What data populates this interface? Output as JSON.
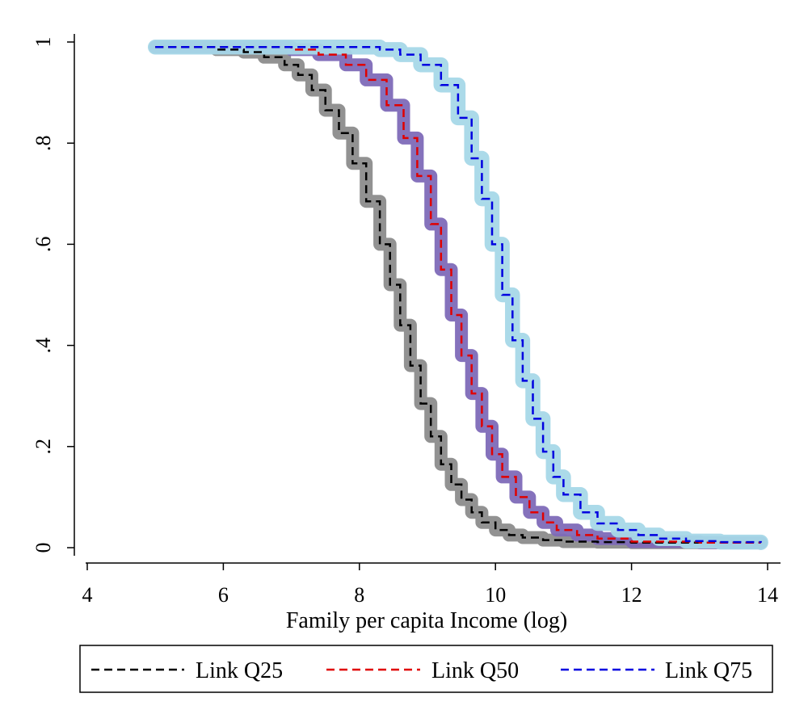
{
  "chart_data": {
    "type": "line",
    "title": "",
    "xlabel": "Family per capita Income (log)",
    "ylabel": "",
    "xlim": [
      4,
      14
    ],
    "ylim": [
      0,
      1
    ],
    "xticks": [
      4,
      6,
      8,
      10,
      12,
      14
    ],
    "xtick_labels": [
      "4",
      "6",
      "8",
      "10",
      "12",
      "14"
    ],
    "yticks": [
      0,
      0.2,
      0.4,
      0.6,
      0.8,
      1
    ],
    "ytick_labels": [
      "0",
      ".2",
      ".4",
      ".6",
      ".8",
      "1"
    ],
    "grid": false,
    "legend_position": "bottom",
    "series": [
      {
        "name": "Link Q25",
        "line_color": "#000000",
        "band_color": "#8c8c8c",
        "band_halfwidth": 0.008,
        "x": [
          5.0,
          5.5,
          5.9,
          6.3,
          6.6,
          6.9,
          7.1,
          7.3,
          7.5,
          7.7,
          7.9,
          8.1,
          8.3,
          8.45,
          8.6,
          8.75,
          8.9,
          9.05,
          9.2,
          9.35,
          9.5,
          9.65,
          9.8,
          10.0,
          10.2,
          10.4,
          10.7,
          11.0,
          11.5,
          12.0,
          13.0,
          13.9
        ],
        "values": [
          0.99,
          0.99,
          0.985,
          0.98,
          0.97,
          0.955,
          0.935,
          0.905,
          0.865,
          0.82,
          0.76,
          0.685,
          0.6,
          0.52,
          0.44,
          0.36,
          0.285,
          0.22,
          0.165,
          0.125,
          0.095,
          0.07,
          0.05,
          0.035,
          0.025,
          0.02,
          0.015,
          0.012,
          0.011,
          0.01,
          0.01,
          0.01
        ]
      },
      {
        "name": "Link Q50",
        "line_color": "#e00000",
        "band_color": "#7e6ab8",
        "band_halfwidth": 0.008,
        "x": [
          5.0,
          6.5,
          7.0,
          7.4,
          7.8,
          8.1,
          8.4,
          8.65,
          8.85,
          9.05,
          9.2,
          9.35,
          9.5,
          9.65,
          9.8,
          9.95,
          10.1,
          10.3,
          10.5,
          10.7,
          10.9,
          11.2,
          11.5,
          12.0,
          13.0,
          13.9
        ],
        "values": [
          0.99,
          0.99,
          0.985,
          0.975,
          0.955,
          0.925,
          0.875,
          0.81,
          0.735,
          0.64,
          0.55,
          0.46,
          0.38,
          0.305,
          0.24,
          0.185,
          0.14,
          0.1,
          0.07,
          0.05,
          0.035,
          0.025,
          0.018,
          0.012,
          0.01,
          0.01
        ]
      },
      {
        "name": "Link Q75",
        "line_color": "#0000e0",
        "band_color": "#a6d8e8",
        "band_halfwidth": 0.01,
        "x": [
          5.0,
          8.0,
          8.3,
          8.6,
          8.9,
          9.2,
          9.45,
          9.65,
          9.8,
          9.95,
          10.1,
          10.25,
          10.4,
          10.55,
          10.7,
          10.85,
          11.0,
          11.25,
          11.5,
          11.8,
          12.1,
          12.4,
          12.8,
          13.3,
          13.9
        ],
        "values": [
          0.99,
          0.99,
          0.985,
          0.975,
          0.955,
          0.915,
          0.85,
          0.77,
          0.69,
          0.6,
          0.5,
          0.41,
          0.33,
          0.255,
          0.19,
          0.14,
          0.105,
          0.07,
          0.048,
          0.035,
          0.025,
          0.018,
          0.013,
          0.011,
          0.01
        ]
      }
    ]
  }
}
